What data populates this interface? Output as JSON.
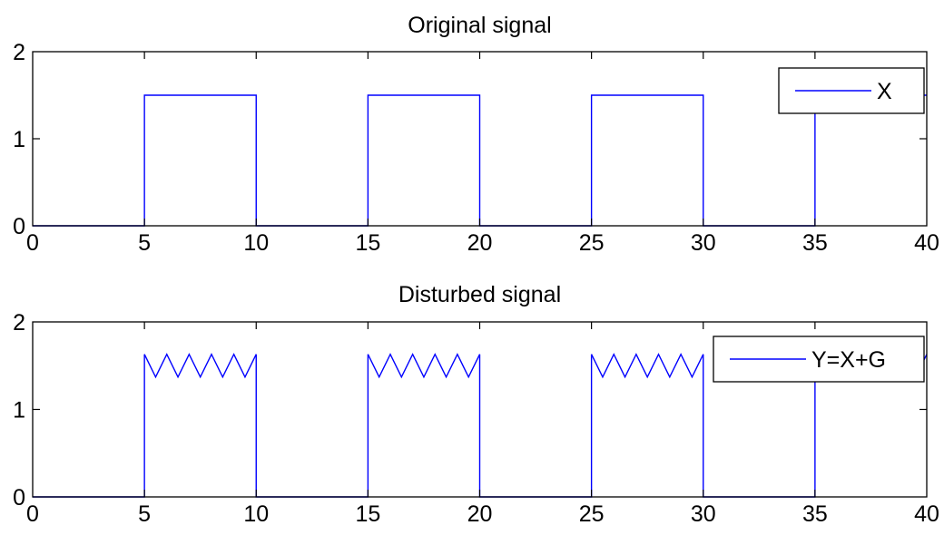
{
  "chart_data": [
    {
      "type": "line",
      "title": "Original signal",
      "xlabel": "",
      "ylabel": "",
      "xlim": [
        0,
        40
      ],
      "ylim": [
        0,
        2
      ],
      "xticks": [
        "0",
        "5",
        "10",
        "15",
        "20",
        "25",
        "30",
        "35",
        "40"
      ],
      "yticks": [
        "0",
        "1",
        "2"
      ],
      "grid": false,
      "legend_position": "top-right",
      "series": [
        {
          "name": "X",
          "color": "#0000ff",
          "x": [
            0,
            5,
            5,
            10,
            10,
            15,
            15,
            20,
            20,
            25,
            25,
            30,
            30,
            35,
            35,
            40
          ],
          "y": [
            0,
            0,
            1.5,
            1.5,
            0,
            0,
            1.5,
            1.5,
            0,
            0,
            1.5,
            1.5,
            0,
            0,
            1.5,
            1.5
          ]
        }
      ]
    },
    {
      "type": "line",
      "title": "Disturbed signal",
      "xlabel": "",
      "ylabel": "",
      "xlim": [
        0,
        40
      ],
      "ylim": [
        0,
        2
      ],
      "xticks": [
        "0",
        "5",
        "10",
        "15",
        "20",
        "25",
        "30",
        "35",
        "40"
      ],
      "yticks": [
        "0",
        "1",
        "2"
      ],
      "grid": false,
      "legend_position": "top-right",
      "series": [
        {
          "name": "Y=X+G",
          "color": "#0000ff",
          "x": [
            0,
            5,
            5,
            5.5,
            6,
            6.5,
            7,
            7.5,
            8,
            8.5,
            9,
            9.5,
            10,
            10,
            15,
            15,
            15.5,
            16,
            16.5,
            17,
            17.5,
            18,
            18.5,
            19,
            19.5,
            20,
            20,
            25,
            25,
            25.5,
            26,
            26.5,
            27,
            27.5,
            28,
            28.5,
            29,
            29.5,
            30,
            30,
            35,
            35,
            35.5,
            36,
            36.5,
            37,
            37.5,
            38,
            38.5,
            39,
            39.5,
            40
          ],
          "y": [
            0,
            0,
            1.63,
            1.37,
            1.63,
            1.37,
            1.63,
            1.37,
            1.63,
            1.37,
            1.63,
            1.37,
            1.63,
            0,
            0,
            1.63,
            1.37,
            1.63,
            1.37,
            1.63,
            1.37,
            1.63,
            1.37,
            1.63,
            1.37,
            1.63,
            0,
            0,
            1.63,
            1.37,
            1.63,
            1.37,
            1.63,
            1.37,
            1.63,
            1.37,
            1.63,
            1.37,
            1.63,
            0,
            0,
            1.63,
            1.37,
            1.63,
            1.37,
            1.63,
            1.37,
            1.63,
            1.37,
            1.63,
            1.37,
            1.63
          ]
        }
      ]
    }
  ]
}
